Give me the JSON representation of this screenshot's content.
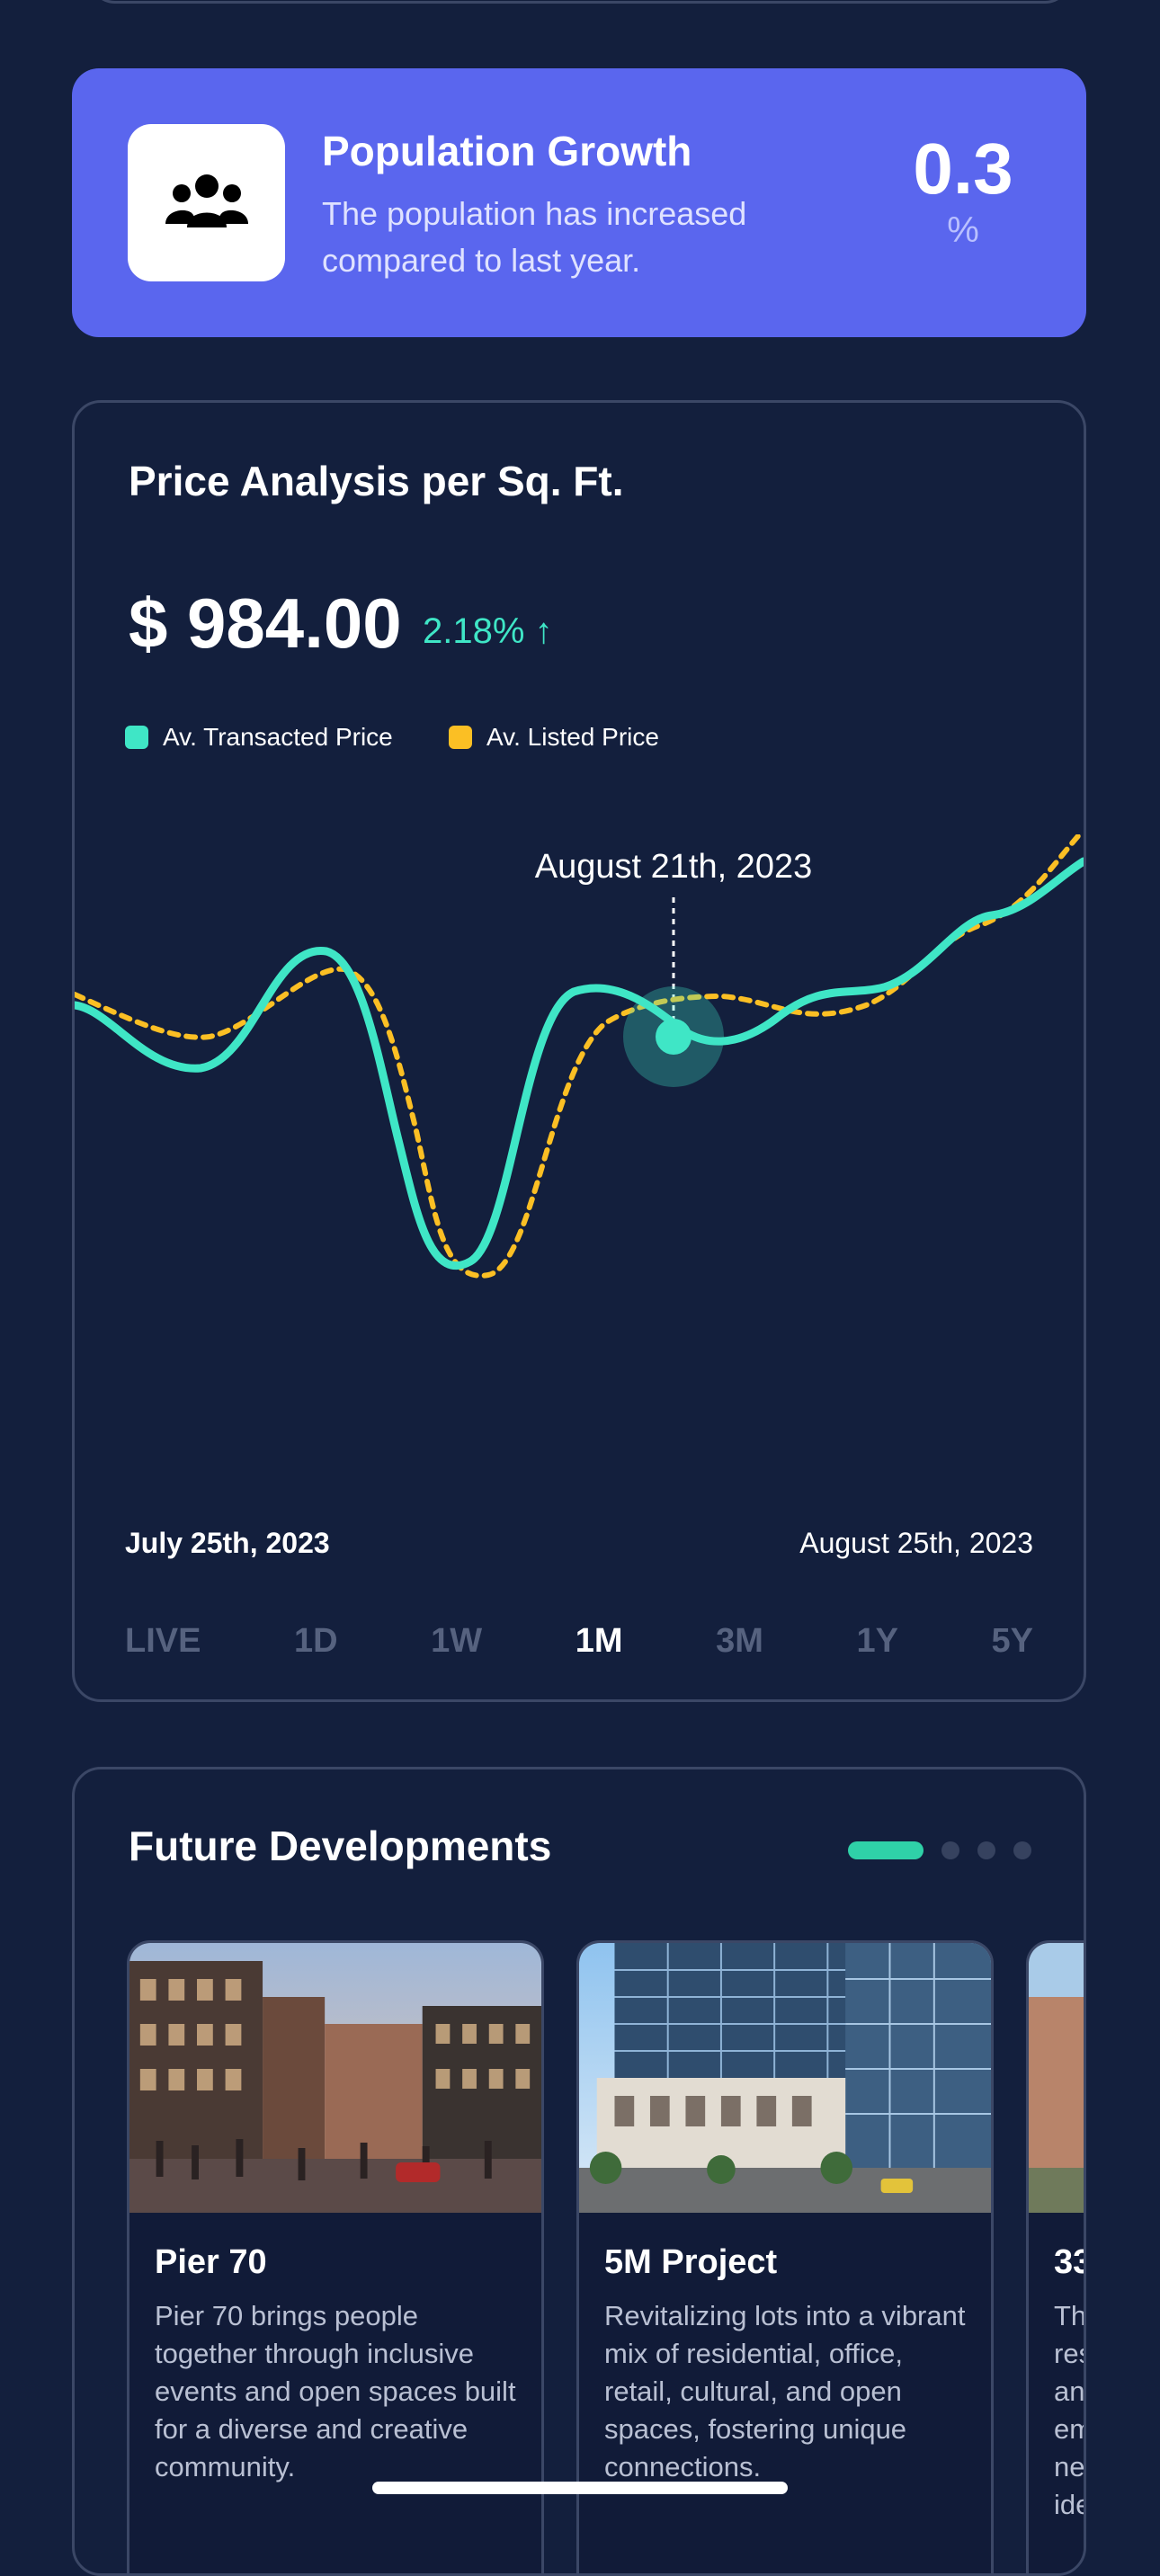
{
  "population": {
    "title": "Population Growth",
    "description": "The population has increased compared to last year.",
    "value": "0.3",
    "unit": "%",
    "icon": "people-group-icon"
  },
  "price": {
    "title": "Price Analysis per Sq. Ft.",
    "value": "$ 984.00",
    "change": "2.18% ↑",
    "legend": [
      {
        "label": "Av. Transacted Price",
        "color": "#3fe6c6"
      },
      {
        "label": "Av. Listed Price",
        "color": "#fbbf24"
      }
    ],
    "tooltip_date": "August 21th, 2023",
    "start_date": "July 25th, 2023",
    "end_date": "August 25th, 2023",
    "ranges": [
      "LIVE",
      "1D",
      "1W",
      "1M",
      "3M",
      "1Y",
      "5Y"
    ],
    "active_range": "1M"
  },
  "developments": {
    "title": "Future Developments",
    "pager": {
      "count": 4,
      "active": 0
    },
    "projects": [
      {
        "name": "Pier 70",
        "description": "Pier 70 brings people together through inclusive events and open spaces built for a diverse and creative community."
      },
      {
        "name": "5M Project",
        "description": "Revitalizing lots into a vibrant mix of residential, office, retail, cultural, and open spaces, fostering unique connections."
      },
      {
        "name": "33",
        "description": "Th res an em ne ide"
      }
    ]
  }
}
